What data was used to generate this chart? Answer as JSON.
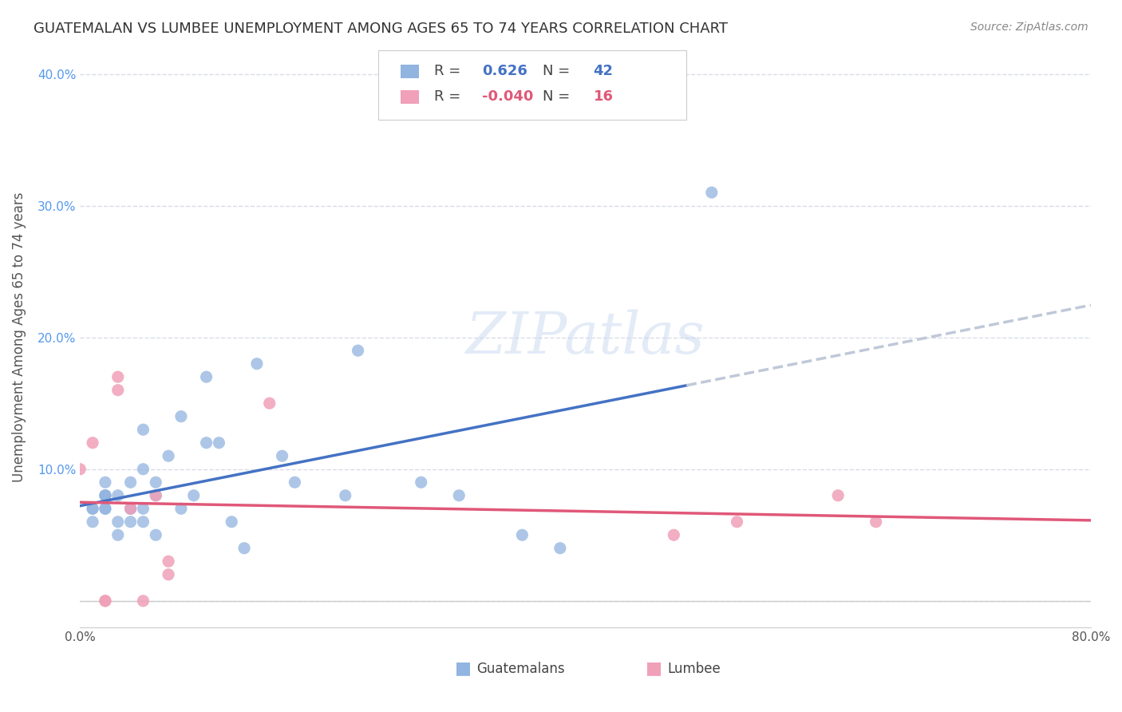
{
  "title": "GUATEMALAN VS LUMBEE UNEMPLOYMENT AMONG AGES 65 TO 74 YEARS CORRELATION CHART",
  "source": "Source: ZipAtlas.com",
  "ylabel": "Unemployment Among Ages 65 to 74 years",
  "xlim": [
    0.0,
    0.8
  ],
  "ylim": [
    -0.02,
    0.42
  ],
  "xticks": [
    0.0,
    0.1,
    0.2,
    0.3,
    0.4,
    0.5,
    0.6,
    0.7,
    0.8
  ],
  "yticks": [
    0.0,
    0.1,
    0.2,
    0.3,
    0.4
  ],
  "legend_guatemalan_r": "0.626",
  "legend_guatemalan_n": "42",
  "legend_lumbee_r": "-0.040",
  "legend_lumbee_n": "16",
  "guatemalan_color": "#92b4e0",
  "lumbee_color": "#f0a0b8",
  "guatemalan_line_color": "#4472C4",
  "lumbee_line_color": "#e05878",
  "dashed_line_color": "#c0c8d8",
  "watermark": "ZIPatlas",
  "guatemalan_x": [
    0.01,
    0.01,
    0.01,
    0.02,
    0.02,
    0.02,
    0.02,
    0.02,
    0.02,
    0.03,
    0.03,
    0.03,
    0.04,
    0.04,
    0.04,
    0.04,
    0.05,
    0.05,
    0.05,
    0.05,
    0.06,
    0.06,
    0.06,
    0.07,
    0.08,
    0.08,
    0.09,
    0.1,
    0.1,
    0.11,
    0.12,
    0.13,
    0.14,
    0.16,
    0.17,
    0.21,
    0.22,
    0.27,
    0.3,
    0.35,
    0.38,
    0.5
  ],
  "guatemalan_y": [
    0.06,
    0.07,
    0.07,
    0.07,
    0.07,
    0.08,
    0.08,
    0.08,
    0.09,
    0.05,
    0.06,
    0.08,
    0.06,
    0.07,
    0.07,
    0.09,
    0.06,
    0.07,
    0.1,
    0.13,
    0.05,
    0.08,
    0.09,
    0.11,
    0.07,
    0.14,
    0.08,
    0.12,
    0.17,
    0.12,
    0.06,
    0.04,
    0.18,
    0.11,
    0.09,
    0.08,
    0.19,
    0.09,
    0.08,
    0.05,
    0.04,
    0.31
  ],
  "lumbee_x": [
    0.0,
    0.01,
    0.02,
    0.02,
    0.03,
    0.03,
    0.04,
    0.05,
    0.06,
    0.07,
    0.07,
    0.15,
    0.47,
    0.52,
    0.6,
    0.63
  ],
  "lumbee_y": [
    0.1,
    0.12,
    0.0,
    0.0,
    0.16,
    0.17,
    0.07,
    0.0,
    0.08,
    0.02,
    0.03,
    0.15,
    0.05,
    0.06,
    0.08,
    0.06
  ],
  "background_color": "#ffffff",
  "grid_color": "#d8dce8",
  "title_fontsize": 13,
  "axis_label_fontsize": 12,
  "tick_fontsize": 11,
  "legend_fontsize": 13,
  "marker_size": 120
}
